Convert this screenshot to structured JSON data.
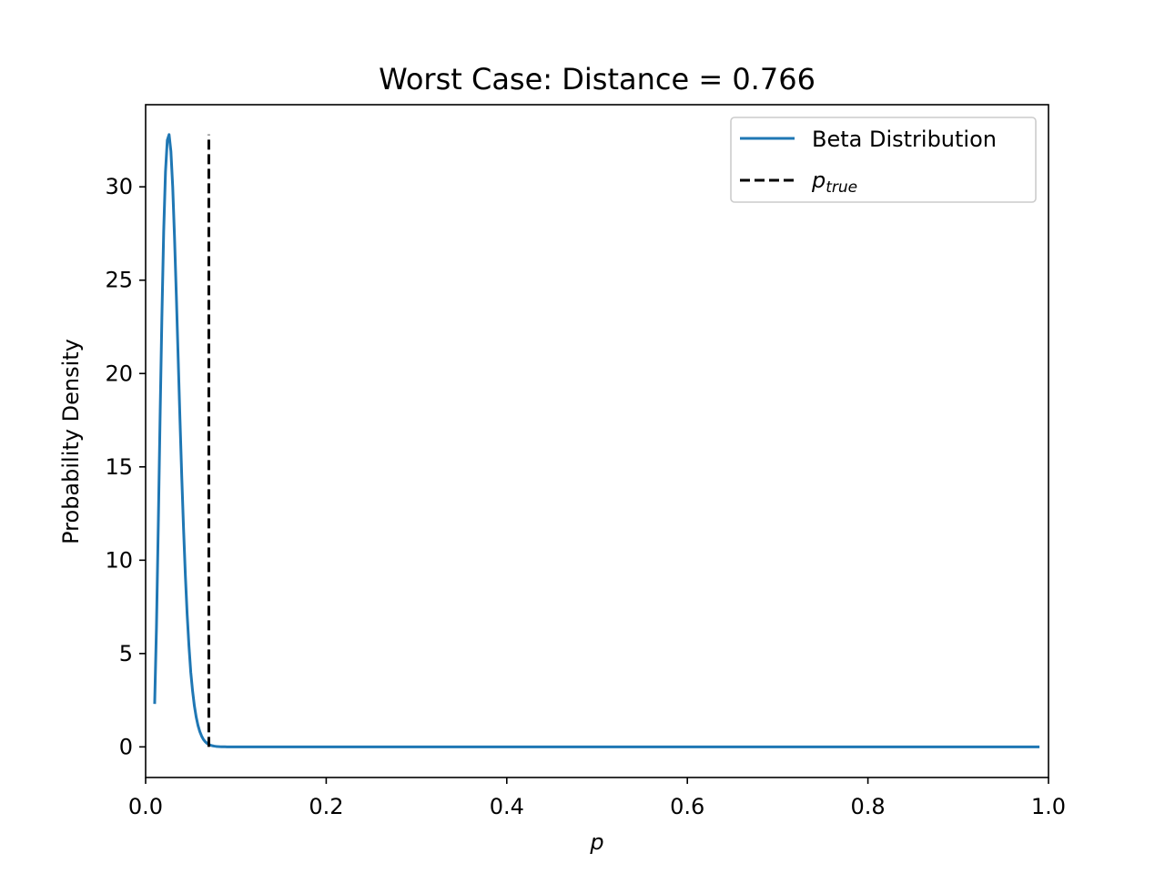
{
  "chart_data": {
    "type": "line",
    "title": "Worst Case: Distance = 0.766",
    "xlabel": "p",
    "ylabel": "Probability Density",
    "xlim": [
      0.0,
      1.0
    ],
    "ylim": [
      -1.64,
      34.4
    ],
    "xticks": [
      0.0,
      0.2,
      0.4,
      0.6,
      0.8,
      1.0
    ],
    "xtick_labels": [
      "0.0",
      "0.2",
      "0.4",
      "0.6",
      "0.8",
      "1.0"
    ],
    "yticks": [
      0,
      5,
      10,
      15,
      20,
      25,
      30
    ],
    "ytick_labels": [
      "0",
      "5",
      "10",
      "15",
      "20",
      "25",
      "30"
    ],
    "grid": false,
    "legend_position": "upper right",
    "series": [
      {
        "name": "Beta Distribution",
        "style": "solid",
        "color": "#1f77b4",
        "x": [
          0.01,
          0.012,
          0.014,
          0.016,
          0.018,
          0.02,
          0.022,
          0.024,
          0.026,
          0.028,
          0.03,
          0.032,
          0.034,
          0.036,
          0.038,
          0.04,
          0.042,
          0.044,
          0.046,
          0.048,
          0.05,
          0.052,
          0.054,
          0.056,
          0.058,
          0.06,
          0.062,
          0.064,
          0.066,
          0.068,
          0.07,
          0.072,
          0.074,
          0.076,
          0.078,
          0.08,
          0.082,
          0.084,
          0.086,
          0.088,
          0.09,
          0.095,
          0.1,
          0.105,
          0.11,
          0.12,
          0.15,
          0.2,
          0.3,
          0.4,
          0.5,
          0.6,
          0.7,
          0.8,
          0.9,
          0.99
        ],
        "y": [
          2.3,
          6.4,
          11.8,
          17.6,
          23.0,
          27.6,
          30.8,
          32.5,
          32.8,
          31.9,
          30.0,
          27.3,
          24.2,
          20.9,
          17.6,
          14.5,
          11.7,
          9.2,
          7.1,
          5.4,
          4.0,
          3.0,
          2.2,
          1.6,
          1.15,
          0.82,
          0.58,
          0.4,
          0.28,
          0.19,
          0.13,
          0.09,
          0.06,
          0.04,
          0.027,
          0.018,
          0.012,
          0.008,
          0.005,
          0.003,
          0.002,
          0.001,
          0.0,
          0.0,
          0.0,
          0.0,
          0.0,
          0.0,
          0.0,
          0.0,
          0.0,
          0.0,
          0.0,
          0.0,
          0.0,
          0.0
        ]
      },
      {
        "name": "p_true",
        "legend_main": "p",
        "legend_sub": "true",
        "style": "dashed",
        "color": "#000000",
        "x": [
          0.07,
          0.07
        ],
        "y": [
          0.0,
          32.8
        ]
      }
    ]
  }
}
